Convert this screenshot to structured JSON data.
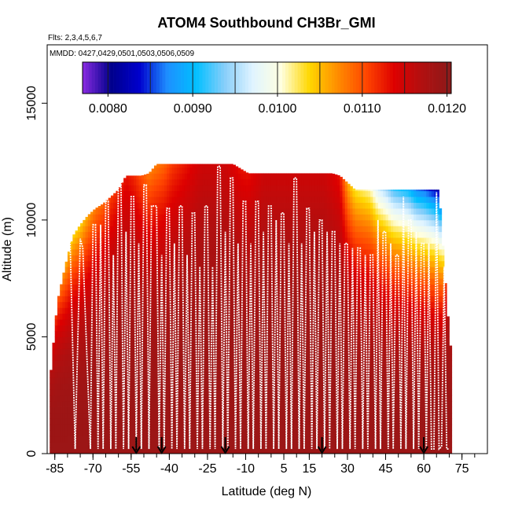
{
  "chart_data": {
    "type": "heatmap",
    "title": "ATOM4 Southbound CH3Br_GMI",
    "flights_label": "Flts: 2,3,4,5,6,7",
    "dates_label": "MMDD: 0427,0429,0501,0503,0506,0509",
    "xlabel": "Latitude (deg N)",
    "ylabel": "Altitude (m)",
    "xlim": [
      -88,
      85
    ],
    "ylim": [
      0,
      17500
    ],
    "x_ticks": [
      -85,
      -70,
      -55,
      -40,
      -25,
      -10,
      5,
      15,
      30,
      45,
      60,
      75
    ],
    "x_tick_labels": [
      "-85",
      "-70",
      "-55",
      "-40",
      "-25",
      "-10",
      "5",
      "15",
      "30",
      "45",
      "60",
      "75"
    ],
    "y_ticks": [
      0,
      5000,
      10000,
      15000
    ],
    "y_tick_labels": [
      "0",
      "5000",
      "10000",
      "15000"
    ],
    "colorbar": {
      "ticks": [
        0.008,
        0.009,
        0.01,
        0.011,
        0.012
      ],
      "tick_labels": [
        "0.0080",
        "0.0090",
        "0.0100",
        "0.0110",
        "0.0120"
      ],
      "range": [
        0.0077,
        0.01205
      ],
      "colors": [
        "#8a2be2",
        "#00008b",
        "#0000cd",
        "#1e90ff",
        "#00bfff",
        "#87cefa",
        "#e0f4ff",
        "#ffffe0",
        "#ffd700",
        "#ff8c00",
        "#ff4500",
        "#dd0000",
        "#b01010",
        "#8b1a1a"
      ]
    },
    "column_top_altitude": {
      "lat": [
        -87,
        -84,
        -81,
        -78,
        -75,
        -72,
        -69,
        -66,
        -63,
        -60,
        -57,
        -54,
        -51,
        -48,
        -45,
        -42,
        -39,
        -36,
        -33,
        -30,
        -27,
        -24,
        -21,
        -18,
        -15,
        -12,
        -9,
        -6,
        -3,
        0,
        3,
        6,
        9,
        12,
        15,
        18,
        21,
        24,
        27,
        30,
        33,
        36,
        39,
        42,
        45,
        48,
        51,
        54,
        57,
        60,
        63,
        66,
        69,
        71
      ],
      "alt": [
        3000,
        6500,
        8000,
        9300,
        9800,
        10200,
        10500,
        10700,
        11000,
        11300,
        11900,
        11900,
        11900,
        12000,
        12400,
        12400,
        12400,
        12400,
        12400,
        12400,
        12400,
        12400,
        12400,
        12400,
        12400,
        12200,
        12000,
        12000,
        12000,
        12000,
        12000,
        12000,
        12000,
        12000,
        12000,
        12000,
        12000,
        12000,
        11900,
        11600,
        11300,
        11300,
        11300,
        11300,
        11300,
        11300,
        11300,
        11300,
        11300,
        11300,
        11300,
        11300,
        6500,
        4000
      ]
    },
    "profile_top_values": {
      "lat": [
        -87,
        -84,
        -81,
        -78,
        -75,
        -72,
        -69,
        -66,
        -63,
        -60,
        -57,
        -54,
        -51,
        -48,
        -45,
        -42,
        -39,
        -36,
        -33,
        -30,
        -27,
        -24,
        -21,
        -18,
        -15,
        -12,
        -9,
        -6,
        -3,
        0,
        3,
        6,
        9,
        12,
        15,
        18,
        21,
        24,
        27,
        30,
        33,
        36,
        39,
        42,
        45,
        48,
        51,
        54,
        57,
        60,
        63,
        66,
        69,
        71
      ],
      "val": [
        0.0118,
        0.011,
        0.0106,
        0.0104,
        0.0104,
        0.0106,
        0.0108,
        0.0109,
        0.0111,
        0.0112,
        0.0113,
        0.0112,
        0.011,
        0.0108,
        0.0108,
        0.0109,
        0.0111,
        0.0112,
        0.0113,
        0.0114,
        0.0115,
        0.0115,
        0.0115,
        0.0115,
        0.0114,
        0.0113,
        0.0113,
        0.0114,
        0.0115,
        0.0115,
        0.0115,
        0.0115,
        0.0115,
        0.0115,
        0.0115,
        0.0115,
        0.0115,
        0.0114,
        0.0113,
        0.0106,
        0.0103,
        0.0102,
        0.0101,
        0.0097,
        0.0095,
        0.0092,
        0.0091,
        0.009,
        0.0087,
        0.0086,
        0.0084,
        0.0082,
        0.0117,
        0.0118
      ]
    },
    "surface_value": 0.0119,
    "flight_track": {
      "lat": [
        -79,
        -77,
        -75,
        -74,
        -71,
        -70,
        -69,
        -68,
        -67,
        -66,
        -65,
        -64,
        -63,
        -62,
        -61,
        -60,
        -59,
        -58,
        -57,
        -56,
        -55,
        -54,
        -53,
        -52,
        -51,
        -50,
        -49,
        -48,
        -47,
        -45,
        -44,
        -43,
        -42,
        -41,
        -40,
        -39,
        -38,
        -37,
        -36,
        -35,
        -34,
        -33,
        -32,
        -31,
        -30,
        -29,
        -28,
        -27,
        -26,
        -25,
        -24,
        -23,
        -22,
        -21,
        -20,
        -19,
        -18,
        -17,
        -16,
        -15,
        -14,
        -13,
        -12,
        -11,
        -10,
        -9,
        -8,
        -7,
        -6,
        -5,
        -4,
        -3,
        -2,
        -1,
        0,
        1,
        2,
        3,
        4,
        5,
        6,
        7,
        8,
        9,
        10,
        11,
        12,
        13,
        14,
        15,
        16,
        17,
        18,
        19,
        20,
        21,
        22,
        23,
        24,
        25,
        26,
        27,
        28,
        29,
        30,
        31,
        32,
        33,
        34,
        35,
        36,
        37,
        38,
        39,
        40,
        41,
        42,
        43,
        44,
        45,
        46,
        47,
        48,
        49,
        50,
        51,
        52,
        53,
        54,
        55,
        56,
        57,
        58,
        59,
        60,
        61,
        62,
        63,
        64,
        65,
        66,
        67,
        68,
        69,
        70,
        71
      ],
      "alt": [
        9200,
        200,
        9200,
        8800,
        200,
        9800,
        9800,
        200,
        9800,
        200,
        10800,
        10800,
        200,
        8500,
        200,
        11800,
        11800,
        200,
        9500,
        200,
        11000,
        11000,
        200,
        9000,
        200,
        11500,
        11500,
        200,
        10600,
        10600,
        200,
        8500,
        200,
        10500,
        10500,
        200,
        9000,
        200,
        10600,
        10600,
        200,
        8500,
        200,
        10300,
        10300,
        200,
        8000,
        200,
        10600,
        10600,
        200,
        8000,
        200,
        12300,
        12300,
        200,
        9500,
        200,
        11800,
        11800,
        200,
        9000,
        200,
        10800,
        10800,
        200,
        9000,
        200,
        10800,
        10800,
        200,
        9500,
        200,
        10600,
        10600,
        200,
        10000,
        200,
        10300,
        10300,
        200,
        9000,
        200,
        11800,
        11800,
        200,
        9000,
        200,
        10500,
        10500,
        200,
        9500,
        200,
        10000,
        10000,
        200,
        9500,
        200,
        9500,
        9500,
        200,
        9000,
        200,
        9000,
        9000,
        200,
        8800,
        200,
        8800,
        8800,
        200,
        8500,
        200,
        8500,
        8500,
        200,
        10000,
        200,
        9500,
        9500,
        200,
        9000,
        200,
        8500,
        8500,
        200,
        11000,
        200,
        10000,
        10000,
        200,
        9500,
        200,
        9000,
        9000,
        200,
        9000,
        200,
        200,
        11200,
        200,
        300,
        8000,
        200,
        200
      ]
    },
    "flight_markers_lat": [
      -53,
      -43,
      -18,
      20,
      60
    ]
  }
}
